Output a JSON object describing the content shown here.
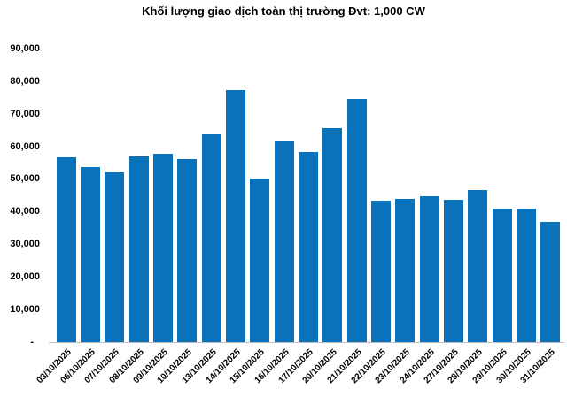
{
  "chart_data": {
    "type": "bar",
    "title": "Khối lượng giao dịch toàn thị trường Đvt: 1,000 CW",
    "categories": [
      "03/10/2025",
      "06/10/2025",
      "07/10/2025",
      "08/10/2025",
      "09/10/2025",
      "10/10/2025",
      "13/10/2025",
      "14/10/2025",
      "15/10/2025",
      "16/10/2025",
      "17/10/2025",
      "20/10/2025",
      "21/10/2025",
      "22/10/2025",
      "23/10/2025",
      "24/10/2025",
      "27/10/2025",
      "28/10/2025",
      "29/10/2025",
      "30/10/2025",
      "31/10/2025"
    ],
    "values": [
      56800,
      53800,
      52000,
      56900,
      57900,
      56100,
      63800,
      77500,
      50200,
      61700,
      58300,
      65800,
      74600,
      43400,
      44100,
      44700,
      43600,
      46800,
      41100,
      41100,
      36900
    ],
    "xlabel": "",
    "ylabel": "",
    "ylim": [
      0,
      90000
    ],
    "ytick_values": [
      0,
      10000,
      20000,
      30000,
      40000,
      50000,
      60000,
      70000,
      80000,
      90000
    ],
    "ytick_labels": [
      "-",
      "10,000",
      "20,000",
      "30,000",
      "40,000",
      "50,000",
      "60,000",
      "70,000",
      "80,000",
      "90,000"
    ],
    "grid": false,
    "legend": null,
    "bar_color": "#0a72ba",
    "axis_line_color": "#bfbfbf",
    "text_color": "#000000",
    "background": "#ffffff"
  }
}
